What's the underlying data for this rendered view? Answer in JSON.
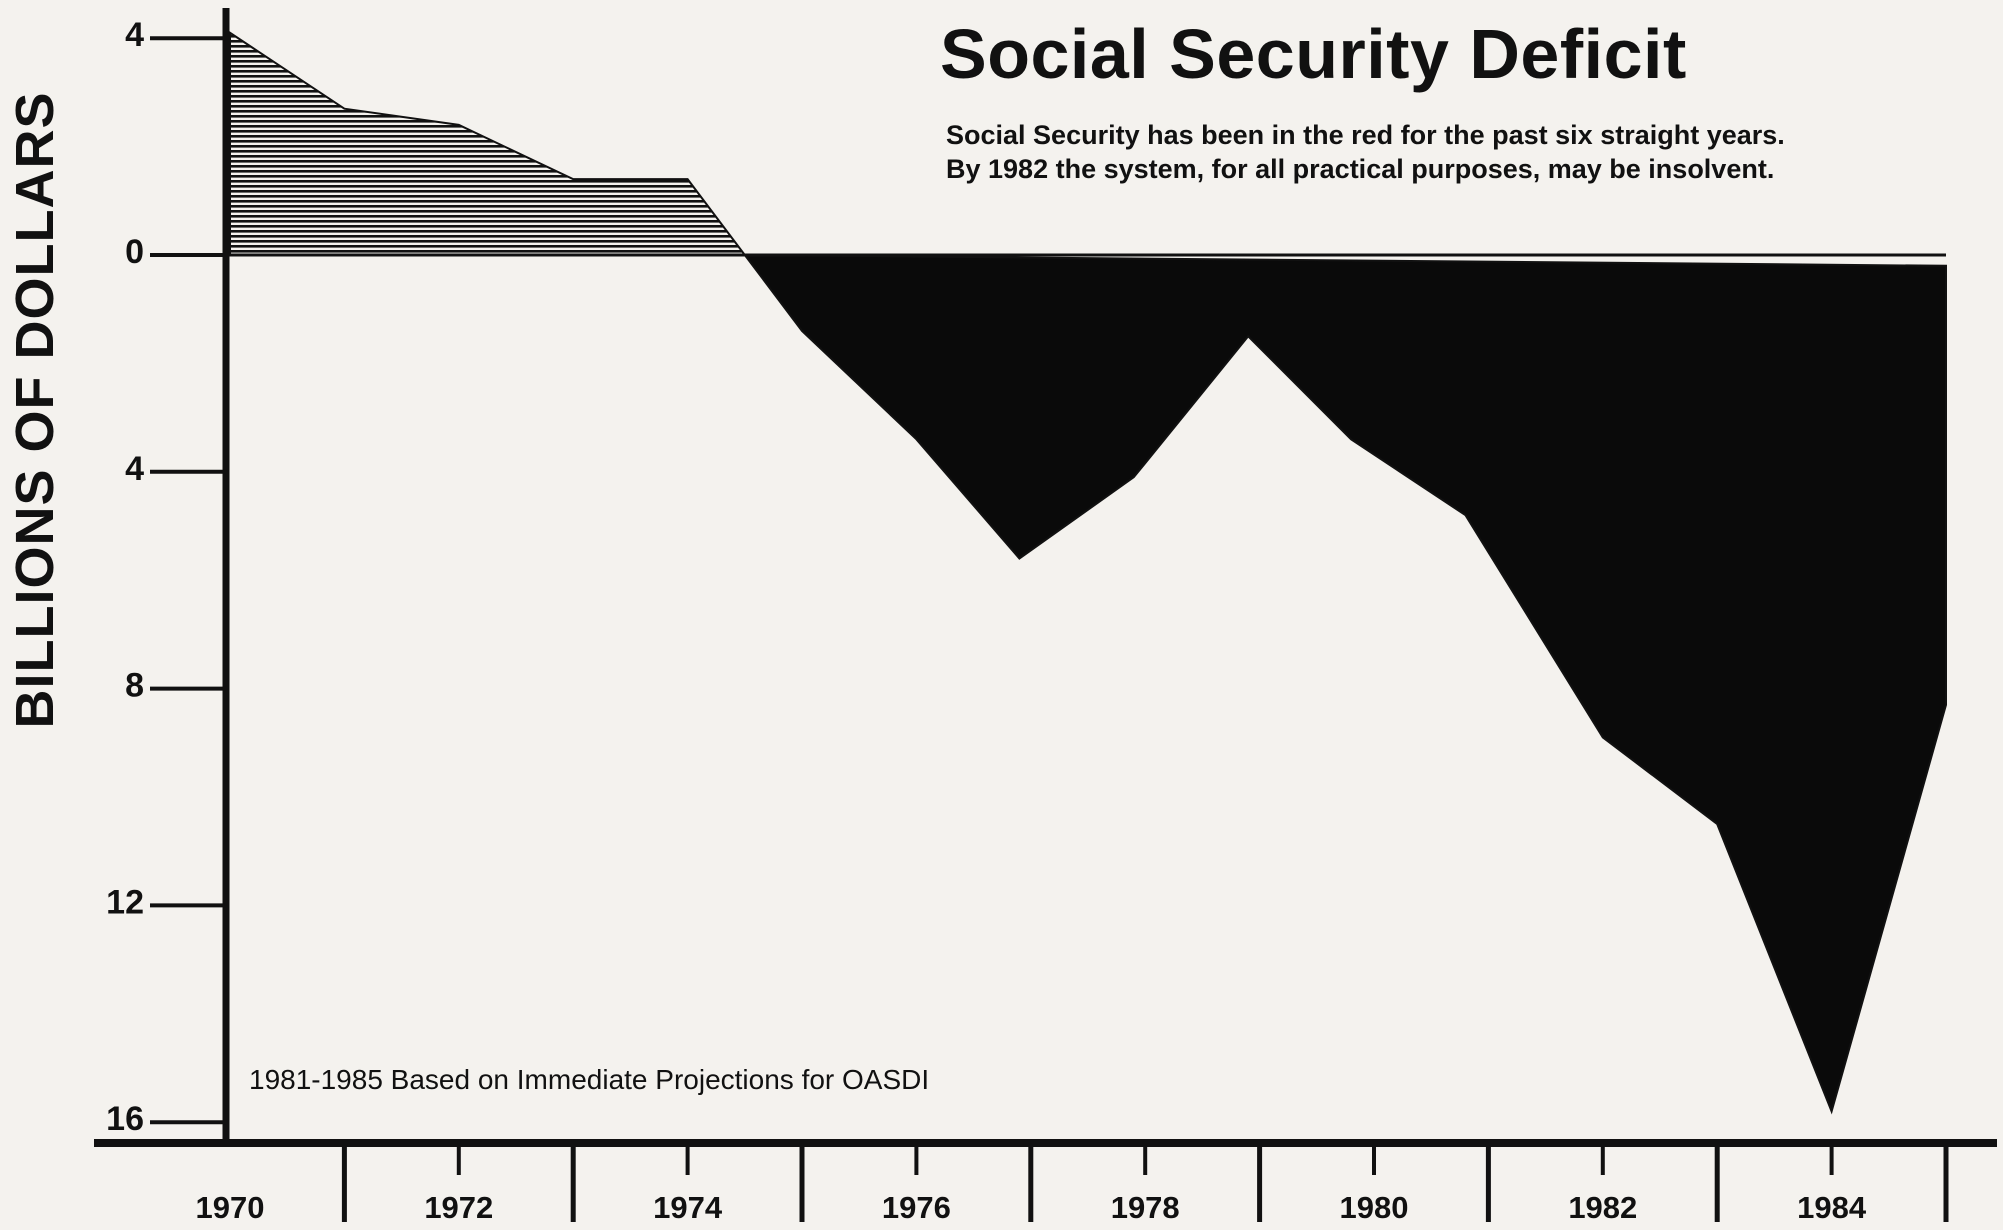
{
  "chart_data": {
    "type": "area",
    "title": "Social Security Deficit",
    "subtitle_lines": [
      "Social Security has been in the red for the past six straight years.",
      "By 1982 the system, for all practical purposes, may be insolvent."
    ],
    "ylabel": "BILLIONS OF DOLLARS",
    "xlabel": "",
    "annotation": "1981-1985 Based on Immediate Projections for OASDI",
    "x_ticks": [
      "1970",
      "1972",
      "1974",
      "1976",
      "1978",
      "1980",
      "1982",
      "1984"
    ],
    "y_ticks": [
      {
        "value": 4,
        "label": "4"
      },
      {
        "value": 0,
        "label": "0"
      },
      {
        "value": -4,
        "label": "4"
      },
      {
        "value": -8,
        "label": "8"
      },
      {
        "value": -12,
        "label": "12"
      },
      {
        "value": -16,
        "label": "16"
      }
    ],
    "ylim": [
      -16,
      4.2
    ],
    "xlim": [
      1970,
      1985
    ],
    "series": [
      {
        "values": [
          {
            "x": 1970,
            "y": 4.1
          },
          {
            "x": 1971,
            "y": 2.7
          },
          {
            "x": 1972,
            "y": 2.4
          },
          {
            "x": 1973,
            "y": 1.4
          },
          {
            "x": 1974,
            "y": 1.4
          },
          {
            "x": 1974.5,
            "y": 0
          },
          {
            "x": 1975,
            "y": -1.4
          },
          {
            "x": 1976,
            "y": -3.4
          },
          {
            "x": 1976.9,
            "y": -5.6
          },
          {
            "x": 1977.9,
            "y": -4.1
          },
          {
            "x": 1978.9,
            "y": -1.5
          },
          {
            "x": 1979.8,
            "y": -3.4
          },
          {
            "x": 1980.8,
            "y": -4.8
          },
          {
            "x": 1982.0,
            "y": -8.9
          },
          {
            "x": 1983.0,
            "y": -10.5
          },
          {
            "x": 1984.0,
            "y": -15.8
          },
          {
            "x": 1985.0,
            "y": -8.3
          },
          {
            "x": 1985.0,
            "y": -0.2
          }
        ]
      }
    ],
    "style": {
      "surplus_fill": "hatched",
      "deficit_fill": "#0a0a0a",
      "ink": "#111111",
      "paper": "#f4f2ee"
    }
  }
}
